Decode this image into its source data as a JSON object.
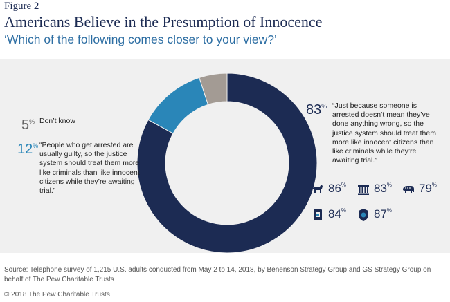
{
  "figure_label": "Figure 2",
  "title": "Americans Believe in the Presumption of Innocence",
  "subtitle": "‘Which of the following comes closer to your view?’",
  "colors": {
    "navy": "#1c2b53",
    "blue": "#2a86b8",
    "grey": "#a39b94",
    "panel": "#f0f0f0"
  },
  "chart_data": {
    "type": "pie",
    "donut": true,
    "slices": [
      {
        "label": "“Just because someone is arrested doesn’t mean they’ve done anything wrong, so the justice system should treat them more like innocent citizens than like criminals while they’re awaiting trial.”",
        "value": 83,
        "color": "#1c2b53"
      },
      {
        "label": "“People who get arrested are usually guilty, so the justice system should treat them more like criminals than like innocent citizens while they’re awaiting trial.”",
        "value": 12,
        "color": "#2a86b8"
      },
      {
        "label": "Don’t know",
        "value": 5,
        "color": "#a39b94"
      }
    ]
  },
  "callouts": {
    "dont_know": {
      "pct": "5",
      "sign": "%",
      "text": "Don’t know"
    },
    "guilty": {
      "pct": "12",
      "sign": "%",
      "text": "“People who get arrested are usually guilty, so the justice system should treat them more like criminals than like innocent citizens while they’re awaiting trial.”"
    },
    "innocent": {
      "pct": "83",
      "sign": "%",
      "text": "“Just because someone is arrested doesn’t mean they’ve done anything wrong, so the justice system should treat them more like innocent citizens than like criminals while they’re awaiting trial.”"
    }
  },
  "groups": [
    {
      "icon": "donkey-icon",
      "value": "86",
      "sign": "%"
    },
    {
      "icon": "capitol-icon",
      "value": "83",
      "sign": "%"
    },
    {
      "icon": "elephant-icon",
      "value": "79",
      "sign": "%"
    },
    {
      "icon": "victim-icon",
      "value": "84",
      "sign": "%"
    },
    {
      "icon": "police-badge-icon",
      "value": "87",
      "sign": "%"
    }
  ],
  "source": "Source: Telephone survey of 1,215 U.S. adults conducted from May 2 to 14, 2018, by Benenson Strategy Group and GS Strategy Group on behalf of The Pew Charitable Trusts",
  "copyright": "© 2018 The Pew Charitable Trusts"
}
